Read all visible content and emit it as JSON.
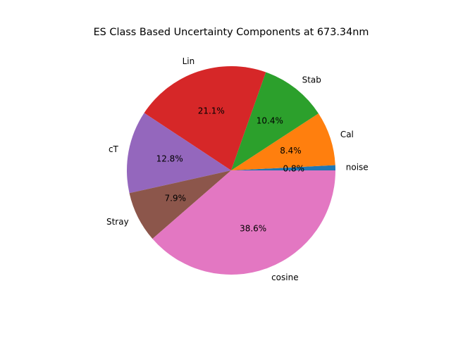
{
  "chart_data": {
    "type": "pie",
    "title": "ES Class Based Uncertainty Components at 673.34nm",
    "slices": [
      {
        "label": "noise",
        "percent": 0.8,
        "percent_label": "0.8%",
        "color": "#1f77b4"
      },
      {
        "label": "Cal",
        "percent": 8.4,
        "percent_label": "8.4%",
        "color": "#ff7f0e"
      },
      {
        "label": "Stab",
        "percent": 10.4,
        "percent_label": "10.4%",
        "color": "#2ca02c"
      },
      {
        "label": "Lin",
        "percent": 21.1,
        "percent_label": "21.1%",
        "color": "#d62728"
      },
      {
        "label": "cT",
        "percent": 12.8,
        "percent_label": "12.8%",
        "color": "#9467bd"
      },
      {
        "label": "Stray",
        "percent": 7.9,
        "percent_label": "7.9%",
        "color": "#8c564b"
      },
      {
        "label": "cosine",
        "percent": 38.6,
        "percent_label": "38.6%",
        "color": "#e377c2"
      }
    ],
    "start_angle_deg": 0,
    "direction": "counterclockwise",
    "legend": "none"
  }
}
